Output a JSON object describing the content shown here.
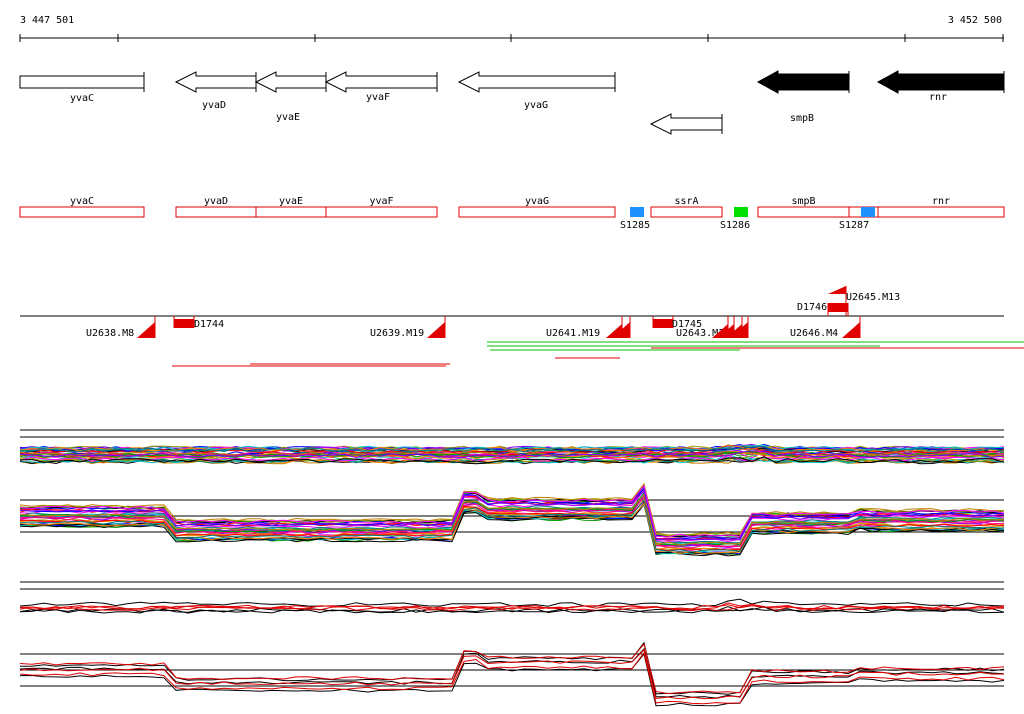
{
  "axis": {
    "start_label": "3 447 501",
    "end_label": "3 452 500"
  },
  "genes": [
    {
      "name": "yvaC",
      "strand": "+",
      "style": "outline"
    },
    {
      "name": "yvaD",
      "strand": "-",
      "style": "outline"
    },
    {
      "name": "yvaE",
      "strand": "-",
      "style": "outline"
    },
    {
      "name": "yvaF",
      "strand": "-",
      "style": "outline"
    },
    {
      "name": "yvaG",
      "strand": "-",
      "style": "outline"
    },
    {
      "name": "",
      "strand": "-",
      "style": "outline"
    },
    {
      "name": "smpB",
      "strand": "-",
      "style": "filled"
    },
    {
      "name": "rnr",
      "strand": "-",
      "style": "filled"
    }
  ],
  "transcript_boxes": [
    "yvaC",
    "yvaD",
    "yvaE",
    "yvaF",
    "yvaG",
    "ssrA",
    "smpB",
    "rnr"
  ],
  "sites": [
    {
      "name": "S1285",
      "color": "#1e90ff"
    },
    {
      "name": "S1286",
      "color": "#00e000"
    },
    {
      "name": "S1287",
      "color": "#1e90ff"
    }
  ],
  "segments_below": [
    {
      "name": "U2638.M8"
    },
    {
      "name": "U2639.M19"
    },
    {
      "name": "U2641.M19"
    },
    {
      "name": "U2643.M10"
    },
    {
      "name": "U2646.M4"
    }
  ],
  "segments_above": [
    {
      "name": "U2645.M13"
    }
  ],
  "downshifts": [
    {
      "name": "D1744"
    },
    {
      "name": "D1745"
    },
    {
      "name": "D1746"
    }
  ],
  "colors": {
    "feature_red": "#e00000",
    "accent_green": "#00c000"
  }
}
